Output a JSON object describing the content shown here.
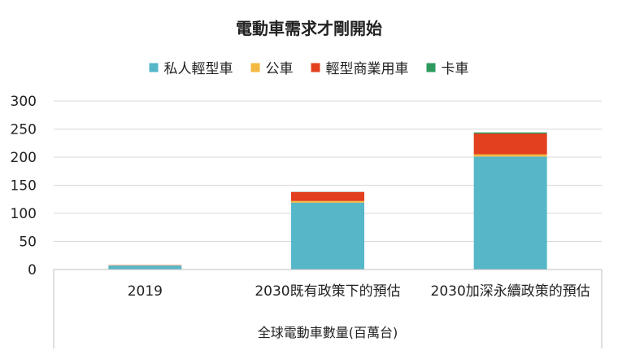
{
  "chart_data": {
    "type": "bar",
    "stacked": true,
    "title": "電動車需求才剛開始",
    "xlabel": "全球電動車數量(百萬台)",
    "ylabel": "",
    "ylim": [
      0,
      300
    ],
    "yticks": [
      0,
      50,
      100,
      150,
      200,
      250,
      300
    ],
    "grid": true,
    "legend_position": "top",
    "categories": [
      "2019",
      "2030既有政策下的預估",
      "2030加深永續政策的預估"
    ],
    "series": [
      {
        "name": "私人輕型車",
        "color": "#55b7c8",
        "values": [
          7,
          119,
          201
        ]
      },
      {
        "name": "公車",
        "color": "#f4b942",
        "values": [
          0.5,
          3,
          4
        ]
      },
      {
        "name": "輕型商業用車",
        "color": "#e2401f",
        "values": [
          0.5,
          16,
          37
        ]
      },
      {
        "name": "卡車",
        "color": "#2e9a5e",
        "values": [
          0,
          0.3,
          2
        ]
      }
    ]
  }
}
